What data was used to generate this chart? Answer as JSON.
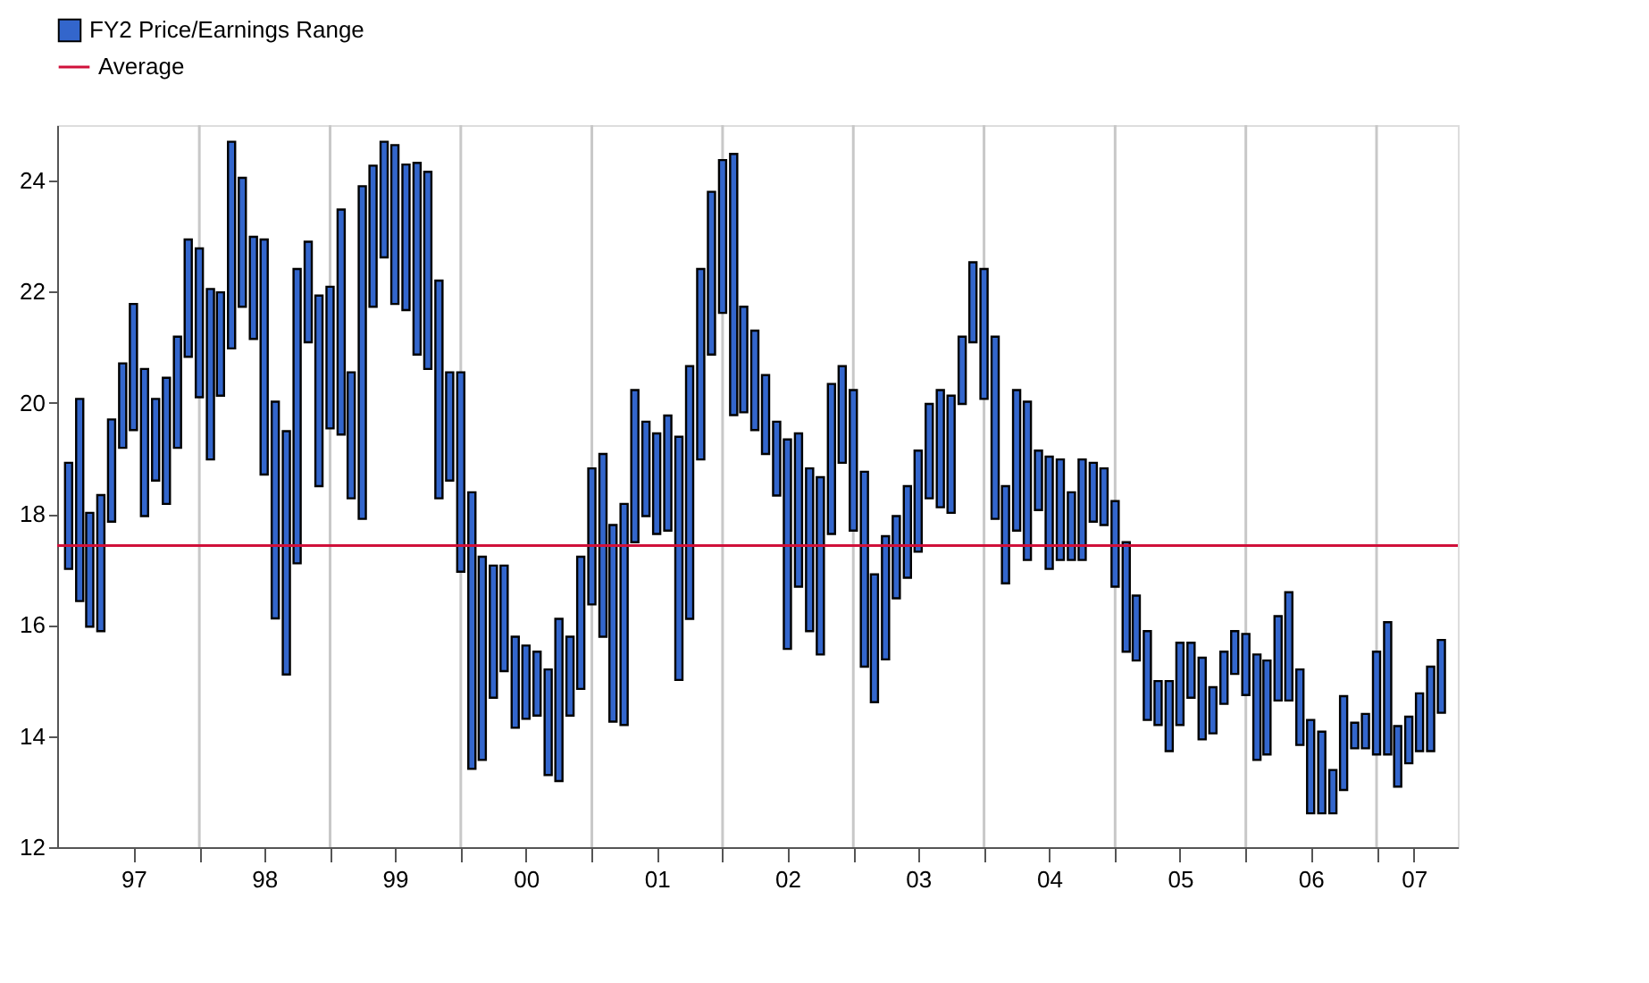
{
  "chart_data": {
    "type": "bar",
    "x": [
      "1997-01",
      "1997-02",
      "1997-03",
      "1997-04",
      "1997-05",
      "1997-06",
      "1997-07",
      "1997-08",
      "1997-09",
      "1997-10",
      "1997-11",
      "1997-12",
      "1998-01",
      "1998-02",
      "1998-03",
      "1998-04",
      "1998-05",
      "1998-06",
      "1998-07",
      "1998-08",
      "1998-09",
      "1998-10",
      "1998-11",
      "1998-12",
      "1999-01",
      "1999-02",
      "1999-03",
      "1999-04",
      "1999-05",
      "1999-06",
      "1999-07",
      "1999-08",
      "1999-09",
      "1999-10",
      "1999-11",
      "1999-12",
      "2000-01",
      "2000-02",
      "2000-03",
      "2000-04",
      "2000-05",
      "2000-06",
      "2000-07",
      "2000-08",
      "2000-09",
      "2000-10",
      "2000-11",
      "2000-12",
      "2001-01",
      "2001-02",
      "2001-03",
      "2001-04",
      "2001-05",
      "2001-06",
      "2001-07",
      "2001-08",
      "2001-09",
      "2001-10",
      "2001-11",
      "2001-12",
      "2002-01",
      "2002-02",
      "2002-03",
      "2002-04",
      "2002-05",
      "2002-06",
      "2002-07",
      "2002-08",
      "2002-09",
      "2002-10",
      "2002-11",
      "2002-12",
      "2003-01",
      "2003-02",
      "2003-03",
      "2003-04",
      "2003-05",
      "2003-06",
      "2003-07",
      "2003-08",
      "2003-09",
      "2003-10",
      "2003-11",
      "2003-12",
      "2004-01",
      "2004-02",
      "2004-03",
      "2004-04",
      "2004-05",
      "2004-06",
      "2004-07",
      "2004-08",
      "2004-09",
      "2004-10",
      "2004-11",
      "2004-12",
      "2005-01",
      "2005-02",
      "2005-03",
      "2005-04",
      "2005-05",
      "2005-06",
      "2005-07",
      "2005-08",
      "2005-09",
      "2005-10",
      "2005-11",
      "2005-12",
      "2006-01",
      "2006-02",
      "2006-03",
      "2006-04",
      "2006-05",
      "2006-06",
      "2006-07",
      "2006-08",
      "2006-09",
      "2006-10",
      "2006-11",
      "2006-12",
      "2007-01",
      "2007-02",
      "2007-03",
      "2007-04",
      "2007-05",
      "2007-06",
      "2007-07"
    ],
    "series": [
      {
        "name": "FY2 Price/Earnings Range",
        "color": "#3366cc",
        "base": [
          17.01,
          16.43,
          15.97,
          15.89,
          17.86,
          19.19,
          19.51,
          17.96,
          18.6,
          18.18,
          19.19,
          20.83,
          20.1,
          18.98,
          20.13,
          20.98,
          21.73,
          21.15,
          18.71,
          16.12,
          15.11,
          17.11,
          21.09,
          18.5,
          19.54,
          19.43,
          18.28,
          17.91,
          21.73,
          22.62,
          21.78,
          21.67,
          20.87,
          20.61,
          18.28,
          18.6,
          16.96,
          13.41,
          13.57,
          14.69,
          15.17,
          14.15,
          14.31,
          14.37,
          13.3,
          13.19,
          14.37,
          14.85,
          16.37,
          15.79,
          14.26,
          14.2,
          17.49,
          17.96,
          17.64,
          17.7,
          15.01,
          16.11,
          18.98,
          20.87,
          21.62,
          19.78,
          19.83,
          19.51,
          19.08,
          18.33,
          15.57,
          16.69,
          15.89,
          15.47,
          17.64,
          18.92,
          17.7,
          15.25,
          14.61,
          15.38,
          16.48,
          16.85,
          17.32,
          18.28,
          18.12,
          18.02,
          19.98,
          21.09,
          20.07,
          17.91,
          16.75,
          17.7,
          17.17,
          18.07,
          17.01,
          17.17,
          17.17,
          17.17,
          17.86,
          17.8,
          16.69,
          15.52,
          15.36,
          14.29,
          14.2,
          13.73,
          14.2,
          14.69,
          13.94,
          14.05,
          14.58,
          15.12,
          14.74,
          13.57,
          13.67,
          14.64,
          14.64,
          13.84,
          12.61,
          12.61,
          12.61,
          13.03,
          13.78,
          13.78,
          13.67,
          13.67,
          13.09,
          13.51,
          13.73,
          13.73,
          14.42
        ],
        "values": [
          1.91,
          3.64,
          2.05,
          2.45,
          1.84,
          1.52,
          2.27,
          2.65,
          1.47,
          2.27,
          2.0,
          2.11,
          2.68,
          3.07,
          1.86,
          3.72,
          2.32,
          1.84,
          4.23,
          3.9,
          4.38,
          5.3,
          1.81,
          3.43,
          2.55,
          4.05,
          2.27,
          5.99,
          2.54,
          2.08,
          2.86,
          2.62,
          3.45,
          3.55,
          3.92,
          1.95,
          3.59,
          4.98,
          3.66,
          2.38,
          1.9,
          1.64,
          1.32,
          1.15,
          1.9,
          2.92,
          1.42,
          2.38,
          2.45,
          3.29,
          3.54,
          3.98,
          2.74,
          1.7,
          1.81,
          2.07,
          4.38,
          4.55,
          3.43,
          2.93,
          2.75,
          4.7,
          1.9,
          1.79,
          1.42,
          1.33,
          3.77,
          2.76,
          2.93,
          3.19,
          2.7,
          1.74,
          2.53,
          3.51,
          2.3,
          2.22,
          1.48,
          1.65,
          1.82,
          1.7,
          2.11,
          2.11,
          1.21,
          1.44,
          2.34,
          3.28,
          1.75,
          2.53,
          2.85,
          1.07,
          2.02,
          1.81,
          1.22,
          1.81,
          1.06,
          1.02,
          1.54,
          1.97,
          1.17,
          1.6,
          0.79,
          1.26,
          1.48,
          0.99,
          1.47,
          0.83,
          0.94,
          0.77,
          1.1,
          1.9,
          1.69,
          1.52,
          1.95,
          1.36,
          1.68,
          1.47,
          0.78,
          1.69,
          0.46,
          0.62,
          1.85,
          2.38,
          1.09,
          0.84,
          1.04,
          1.52,
          1.31
        ]
      }
    ],
    "ref_lines": [
      {
        "axis": "y",
        "value": 17.43,
        "label": "Average",
        "color": "#d0103a"
      }
    ],
    "xlim": [
      "1996-12-25",
      "2007-07-22"
    ],
    "xticks": [
      {
        "value": "1997-07-01",
        "label": "97"
      },
      {
        "value": "1998-01-01",
        "label": null
      },
      {
        "value": "1998-07-01",
        "label": "98"
      },
      {
        "value": "1999-01-01",
        "label": null
      },
      {
        "value": "1999-07-01",
        "label": "99"
      },
      {
        "value": "2000-01-01",
        "label": null
      },
      {
        "value": "2000-07-01",
        "label": "00"
      },
      {
        "value": "2001-01-01",
        "label": null
      },
      {
        "value": "2001-07-01",
        "label": "01"
      },
      {
        "value": "2002-01-01",
        "label": null
      },
      {
        "value": "2002-07-01",
        "label": "02"
      },
      {
        "value": "2003-01-01",
        "label": null
      },
      {
        "value": "2003-07-01",
        "label": "03"
      },
      {
        "value": "2004-01-01",
        "label": null
      },
      {
        "value": "2004-07-01",
        "label": "04"
      },
      {
        "value": "2005-01-01",
        "label": null
      },
      {
        "value": "2005-07-01",
        "label": "05"
      },
      {
        "value": "2006-01-01",
        "label": null
      },
      {
        "value": "2006-07-01",
        "label": "06"
      },
      {
        "value": "2007-01-01",
        "label": null
      },
      {
        "value": "2007-04-15",
        "label": "07"
      }
    ],
    "ylim": [
      12,
      25
    ],
    "yticks": [
      12,
      14,
      16,
      18,
      20,
      22,
      24
    ],
    "grid": "x",
    "legend": "top left"
  }
}
